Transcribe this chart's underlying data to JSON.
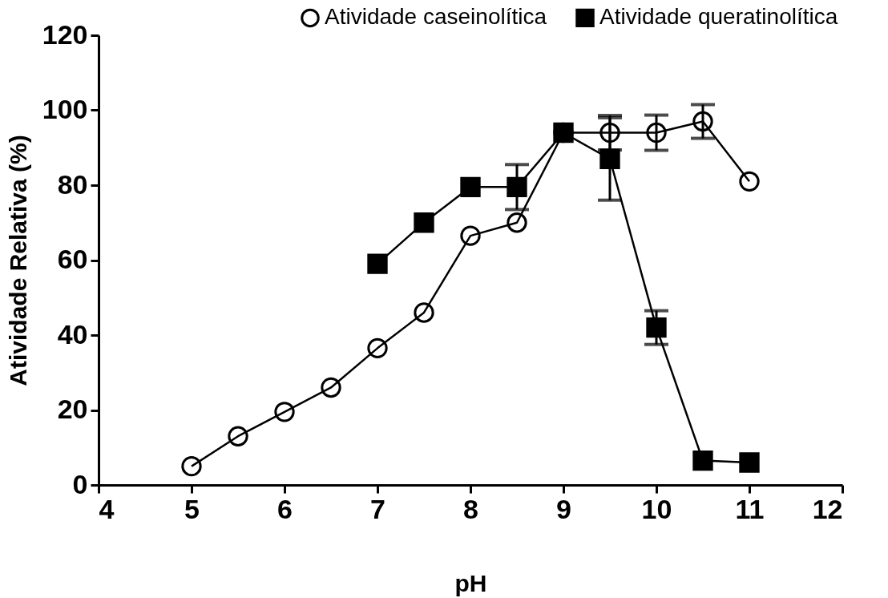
{
  "chart_data": {
    "type": "line",
    "xlabel": "pH",
    "ylabel": "Atividade Relativa (%)",
    "xlim": [
      4,
      12
    ],
    "xticks": [
      4,
      5,
      6,
      7,
      8,
      9,
      10,
      11,
      12
    ],
    "ylim": [
      0,
      120
    ],
    "yticks": [
      0,
      20,
      40,
      60,
      80,
      100,
      120
    ],
    "grid": false,
    "legend": "top right",
    "line_style": "solid",
    "series": [
      {
        "name": "Atividade caseinolítica",
        "color": "#000000",
        "marker": "circle",
        "x": [
          5,
          5.5,
          6,
          6.5,
          7,
          7.5,
          8,
          8.5,
          9,
          9.5,
          10,
          10.5,
          11
        ],
        "values": [
          5,
          13,
          19.5,
          26,
          36.5,
          46,
          66.5,
          70,
          94,
          94,
          94,
          97,
          81
        ],
        "errors": [
          null,
          null,
          null,
          null,
          null,
          null,
          null,
          null,
          null,
          4.6,
          4.7,
          4.5,
          null
        ]
      },
      {
        "name": "Atividade queratinolítica",
        "color": "#000000",
        "marker": "square",
        "x": [
          7,
          7.5,
          8,
          8.5,
          9,
          9.5,
          10,
          10.5,
          11
        ],
        "values": [
          59,
          70,
          79.5,
          79.5,
          94,
          87,
          42,
          6.5,
          6
        ],
        "errors": [
          null,
          null,
          null,
          6,
          null,
          11,
          4.5,
          null,
          null
        ]
      }
    ]
  }
}
